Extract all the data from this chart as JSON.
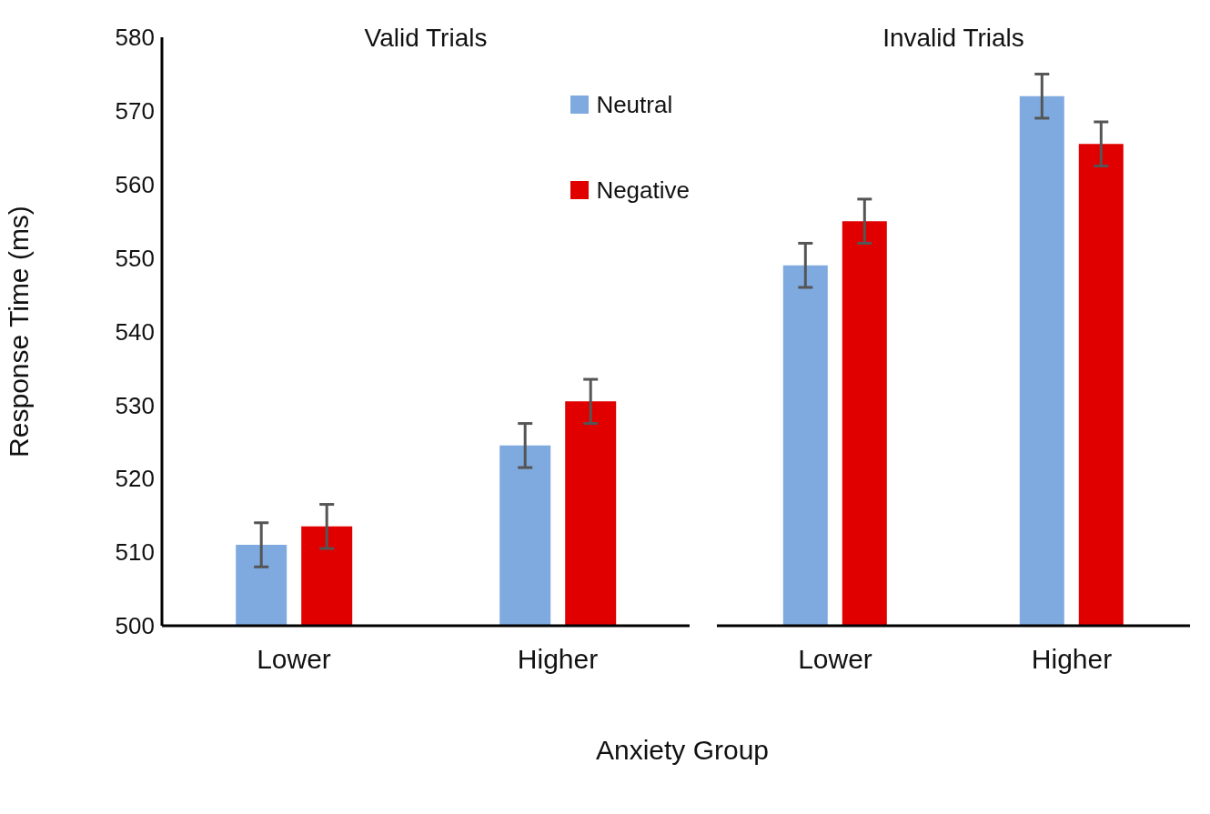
{
  "chart_data": [
    {
      "type": "bar",
      "title": "Valid Trials",
      "xlabel": "Anxiety Group",
      "ylabel": "Response Time (ms)",
      "categories": [
        "Lower",
        "Higher"
      ],
      "series": [
        {
          "name": "Neutral",
          "color": "#7faadf",
          "values": [
            511,
            524.5
          ],
          "errors": [
            3,
            3
          ]
        },
        {
          "name": "Negative",
          "color": "#e00000",
          "values": [
            513.5,
            530.5
          ],
          "errors": [
            3,
            3
          ]
        }
      ],
      "ylim": [
        500,
        580
      ],
      "yticks": [
        500,
        510,
        520,
        530,
        540,
        550,
        560,
        570,
        580
      ],
      "grid": false,
      "legend": "top right"
    },
    {
      "type": "bar",
      "title": "Invalid Trials",
      "categories": [
        "Lower",
        "Higher"
      ],
      "series": [
        {
          "color": "#7faadf",
          "values": [
            549,
            572
          ],
          "errors": [
            3,
            3
          ]
        },
        {
          "color": "#e00000",
          "values": [
            555,
            565.5
          ],
          "errors": [
            3,
            3
          ]
        }
      ],
      "ylim": [
        500,
        580
      ],
      "yticks": [
        500,
        510,
        520,
        530,
        540,
        550,
        560,
        570,
        580
      ],
      "grid": false,
      "tick_labels": "x"
    }
  ]
}
